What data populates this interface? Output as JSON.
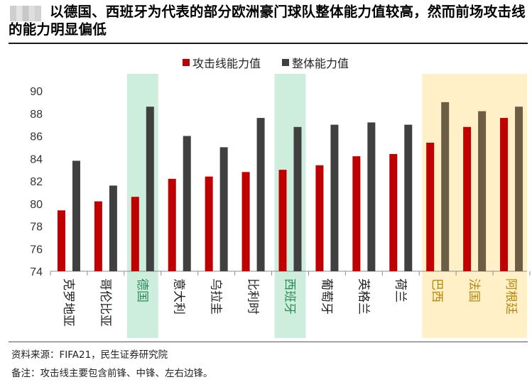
{
  "title": "以德国、西班牙为代表的部分欧洲豪门球队整体能力值较高，然而前场攻击线的能力明显偏低",
  "footer": {
    "source": "资料来源：FIFA21，民生证券研究院",
    "note": "备注：攻击线主要包含前锋、中锋、左右边锋。"
  },
  "colors": {
    "attack": "#c00000",
    "overall": "#404040",
    "attack_highlight_green": "#c00000",
    "overall_highlight_green": "#404040",
    "attack_highlight_yellow": "#c00000",
    "overall_highlight_yellow": "#6b5e45",
    "green_band": "#cdeedd",
    "yellow_band": "#fff0c8",
    "green_label": "#2e8b57",
    "yellow_label": "#b8860b"
  },
  "chart_data": {
    "type": "bar",
    "title": "",
    "xlabel": "",
    "ylabel": "",
    "ylim": [
      74,
      90
    ],
    "yticks": [
      74,
      76,
      78,
      80,
      82,
      84,
      86,
      88,
      90
    ],
    "legend_position": "top-center",
    "categories": [
      "克罗地亚",
      "哥伦比亚",
      "德国",
      "意大利",
      "乌拉圭",
      "比利时",
      "西班牙",
      "葡萄牙",
      "英格兰",
      "荷兰",
      "巴西",
      "法国",
      "阿根廷"
    ],
    "series": [
      {
        "name": "攻击线能力值",
        "values": [
          79.4,
          80.2,
          80.6,
          82.2,
          82.4,
          82.8,
          83.0,
          83.4,
          84.2,
          84.4,
          85.4,
          86.8,
          87.6
        ]
      },
      {
        "name": "整体能力值",
        "values": [
          83.8,
          81.6,
          88.6,
          86.0,
          85.0,
          87.6,
          86.8,
          87.0,
          87.2,
          87.0,
          89.0,
          88.2,
          88.6
        ]
      }
    ],
    "highlights": [
      {
        "category": "德国",
        "style": "green"
      },
      {
        "category": "西班牙",
        "style": "green"
      },
      {
        "category": "巴西",
        "style": "yellow"
      },
      {
        "category": "法国",
        "style": "yellow"
      },
      {
        "category": "阿根廷",
        "style": "yellow"
      }
    ]
  }
}
